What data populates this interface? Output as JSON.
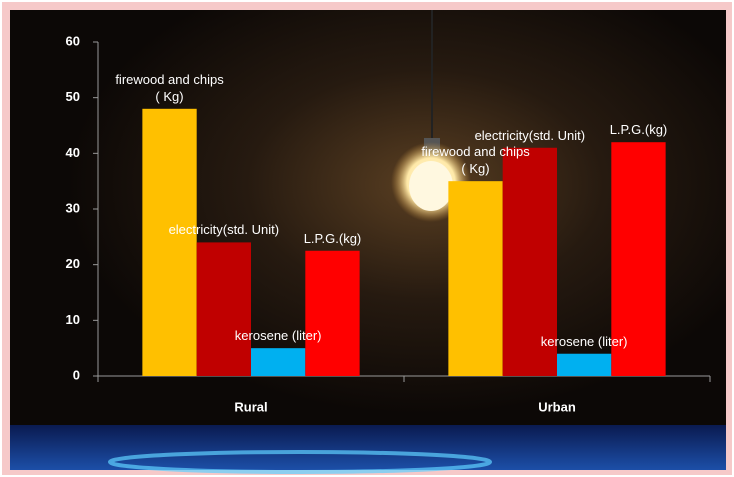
{
  "chart_data": {
    "type": "bar",
    "categories": [
      "Rural",
      "Urban"
    ],
    "series": [
      {
        "name": "firewood and chips ( Kg)",
        "color": "#ffc000",
        "values": [
          48,
          35
        ]
      },
      {
        "name": "electricity(std. Unit)",
        "color": "#c00000",
        "values": [
          24,
          41
        ]
      },
      {
        "name": "kerosene (liter)",
        "color": "#00b0f0",
        "values": [
          5,
          4
        ]
      },
      {
        "name": "L.P.G.(kg)",
        "color": "#ff0000",
        "values": [
          22.5,
          42
        ]
      }
    ],
    "ylim": [
      0,
      60
    ],
    "yticks": [
      0,
      10,
      20,
      30,
      40,
      50,
      60
    ],
    "grid": false
  }
}
